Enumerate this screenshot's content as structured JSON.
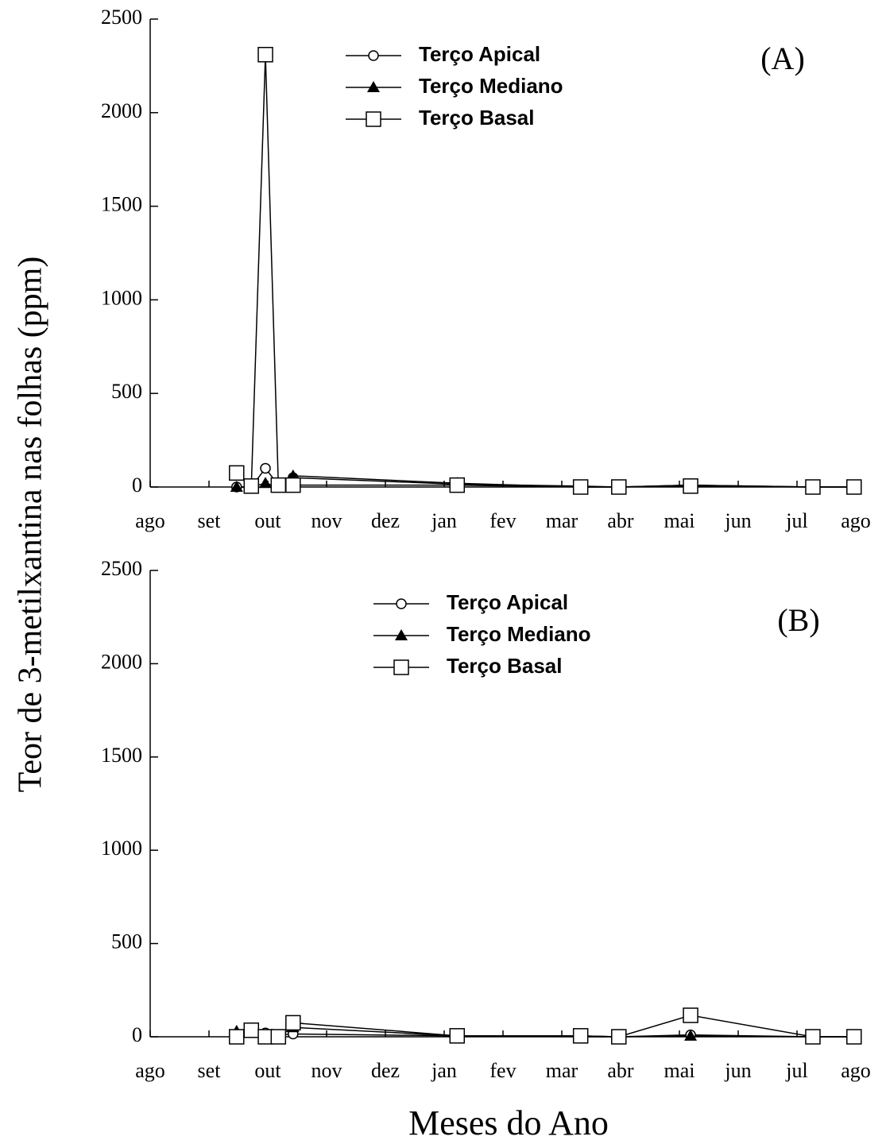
{
  "chart_data": [
    {
      "type": "line",
      "annotation": "(A)",
      "ylabel": "Teor de 3-metilxantina nas folhas (ppm)",
      "x": [
        1.47,
        1.72,
        1.96,
        2.18,
        2.43,
        5.22,
        7.32,
        7.97,
        9.19,
        11.27,
        11.97
      ],
      "series": [
        {
          "name": "Terço Apical",
          "color": "#000000",
          "marker": "circle",
          "values": [
            0,
            0,
            100,
            10,
            50,
            15,
            5,
            0,
            10,
            0,
            0
          ]
        },
        {
          "name": "Terço Mediano",
          "color": "#000000",
          "marker": "triangle",
          "values": [
            0,
            0,
            20,
            0,
            60,
            20,
            0,
            0,
            10,
            0,
            0
          ]
        },
        {
          "name": "Terço Basal",
          "color": "#000000",
          "marker": "square",
          "values": [
            75,
            5,
            2310,
            10,
            10,
            10,
            0,
            0,
            5,
            0,
            0
          ]
        }
      ],
      "xlim": [
        0,
        12
      ],
      "xticks": [
        {
          "value": 0,
          "label": "ago"
        },
        {
          "value": 1,
          "label": "set"
        },
        {
          "value": 2,
          "label": "out"
        },
        {
          "value": 3,
          "label": "nov"
        },
        {
          "value": 4,
          "label": "dez"
        },
        {
          "value": 5,
          "label": "jan"
        },
        {
          "value": 6,
          "label": "fev"
        },
        {
          "value": 7,
          "label": "mar"
        },
        {
          "value": 8,
          "label": "abr"
        },
        {
          "value": 9,
          "label": "mai"
        },
        {
          "value": 10,
          "label": "jun"
        },
        {
          "value": 11,
          "label": "jul"
        },
        {
          "value": 12,
          "label": "ago"
        }
      ],
      "ylim": [
        0,
        2500
      ],
      "yticks": [
        0,
        500,
        1000,
        1500,
        2000,
        2500
      ]
    },
    {
      "type": "line",
      "annotation": "(B)",
      "xlabel": "Meses do Ano",
      "x": [
        1.47,
        1.72,
        1.96,
        2.18,
        2.43,
        5.22,
        7.32,
        7.97,
        9.19,
        11.27,
        11.97
      ],
      "series": [
        {
          "name": "Terço Apical",
          "color": "#000000",
          "marker": "circle",
          "values": [
            0,
            30,
            20,
            10,
            15,
            5,
            5,
            0,
            10,
            0,
            0
          ]
        },
        {
          "name": "Terço Mediano",
          "color": "#000000",
          "marker": "triangle",
          "values": [
            30,
            20,
            0,
            0,
            50,
            5,
            0,
            0,
            5,
            0,
            0
          ]
        },
        {
          "name": "Terço Basal",
          "color": "#000000",
          "marker": "square",
          "values": [
            0,
            35,
            0,
            0,
            75,
            5,
            5,
            0,
            115,
            0,
            0
          ]
        }
      ],
      "xlim": [
        0,
        12
      ],
      "xticks": [
        {
          "value": 0,
          "label": "ago"
        },
        {
          "value": 1,
          "label": "set"
        },
        {
          "value": 2,
          "label": "out"
        },
        {
          "value": 3,
          "label": "nov"
        },
        {
          "value": 4,
          "label": "dez"
        },
        {
          "value": 5,
          "label": "jan"
        },
        {
          "value": 6,
          "label": "fev"
        },
        {
          "value": 7,
          "label": "mar"
        },
        {
          "value": 8,
          "label": "abr"
        },
        {
          "value": 9,
          "label": "mai"
        },
        {
          "value": 10,
          "label": "jun"
        },
        {
          "value": 11,
          "label": "jul"
        },
        {
          "value": 12,
          "label": "ago"
        }
      ],
      "ylim": [
        0,
        2500
      ],
      "yticks": [
        0,
        500,
        1000,
        1500,
        2000,
        2500
      ]
    }
  ]
}
